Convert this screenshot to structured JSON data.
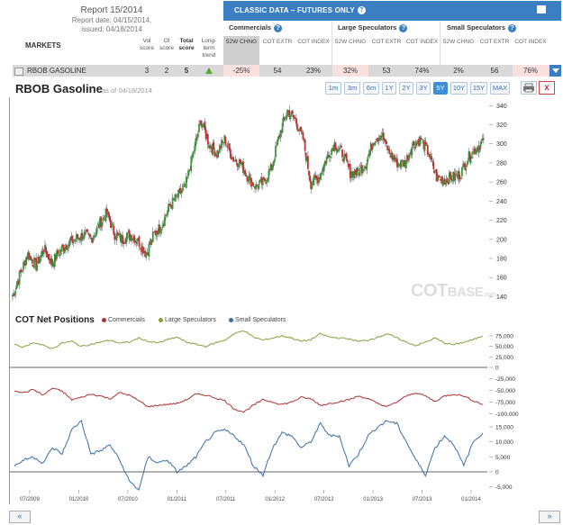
{
  "report": {
    "title": "Report 15/2014",
    "report_date": "Report date: 04/15/2014,",
    "issued": "issued: 04/18/2014"
  },
  "columns": {
    "markets": "MARKETS",
    "vol_score": "Vol score",
    "oi_score": "OI score",
    "total_score": "Total score",
    "trend": "Long-term trend"
  },
  "classic": {
    "title": "CLASSIC DATA – FUTURES ONLY",
    "help": "?",
    "groups": [
      "Commercials",
      "Large Speculators",
      "Small Speculators"
    ],
    "sub_headers": [
      "52W CHNG",
      "COT EXTR",
      "COT INDEX"
    ]
  },
  "row": {
    "market": "RBOB GASOLINE",
    "vol": "3",
    "oi": "2",
    "total": "5",
    "trend": "up",
    "values": [
      "-25%",
      "54",
      "23%",
      "32%",
      "53",
      "74%",
      "2%",
      "56",
      "76%"
    ]
  },
  "chart": {
    "title": "RBOB Gasoline",
    "date": "as of 04/18/2014",
    "zoom_buttons": [
      "1m",
      "3m",
      "6m",
      "1Y",
      "2Y",
      "3Y",
      "5Y",
      "10Y",
      "15Y",
      "MAX"
    ],
    "selected_zoom": "5Y",
    "close": "x",
    "watermark_main": "COT",
    "watermark_sub": "BASE",
    "watermark_tld": ".com"
  },
  "cot": {
    "title": "COT Net Positions",
    "legend": [
      "Commercials",
      "Large Speculators",
      "Small Speculators"
    ],
    "colors": {
      "commercials": "#b03030",
      "large": "#7fa33a",
      "small": "#3a6ea5"
    }
  },
  "nav": {
    "prev": "«",
    "next": "»"
  },
  "chart_data": [
    {
      "type": "candlestick",
      "title": "RBOB Gasoline",
      "ylim": [
        130,
        345
      ],
      "yticks": [
        140,
        160,
        180,
        200,
        220,
        240,
        260,
        280,
        300,
        320,
        340
      ],
      "xticks": [
        "07/2009",
        "01/2010",
        "07/2010",
        "01/2011",
        "07/2011",
        "01/2012",
        "07/2012",
        "01/2013",
        "07/2013",
        "01/2014"
      ],
      "close_path": [
        [
          "2009-04",
          140
        ],
        [
          "2009-05",
          165
        ],
        [
          "2009-06",
          185
        ],
        [
          "2009-07",
          172
        ],
        [
          "2009-08",
          190
        ],
        [
          "2009-09",
          175
        ],
        [
          "2009-10",
          188
        ],
        [
          "2009-11",
          195
        ],
        [
          "2009-12",
          200
        ],
        [
          "2010-01",
          205
        ],
        [
          "2010-02",
          200
        ],
        [
          "2010-03",
          215
        ],
        [
          "2010-04",
          228
        ],
        [
          "2010-05",
          205
        ],
        [
          "2010-06",
          200
        ],
        [
          "2010-07",
          205
        ],
        [
          "2010-08",
          198
        ],
        [
          "2010-09",
          185
        ],
        [
          "2010-10",
          205
        ],
        [
          "2010-11",
          215
        ],
        [
          "2010-12",
          235
        ],
        [
          "2011-01",
          245
        ],
        [
          "2011-02",
          255
        ],
        [
          "2011-03",
          290
        ],
        [
          "2011-04",
          325
        ],
        [
          "2011-05",
          300
        ],
        [
          "2011-06",
          290
        ],
        [
          "2011-07",
          305
        ],
        [
          "2011-08",
          285
        ],
        [
          "2011-09",
          280
        ],
        [
          "2011-10",
          265
        ],
        [
          "2011-11",
          255
        ],
        [
          "2011-12",
          260
        ],
        [
          "2012-01",
          275
        ],
        [
          "2012-02",
          310
        ],
        [
          "2012-03",
          335
        ],
        [
          "2012-04",
          325
        ],
        [
          "2012-05",
          305
        ],
        [
          "2012-06",
          258
        ],
        [
          "2012-07",
          265
        ],
        [
          "2012-08",
          285
        ],
        [
          "2012-09",
          300
        ],
        [
          "2012-10",
          290
        ],
        [
          "2012-11",
          270
        ],
        [
          "2012-12",
          270
        ],
        [
          "2013-01",
          280
        ],
        [
          "2013-02",
          305
        ],
        [
          "2013-03",
          310
        ],
        [
          "2013-04",
          290
        ],
        [
          "2013-05",
          280
        ],
        [
          "2013-06",
          280
        ],
        [
          "2013-07",
          300
        ],
        [
          "2013-08",
          305
        ],
        [
          "2013-09",
          290
        ],
        [
          "2013-10",
          265
        ],
        [
          "2013-11",
          262
        ],
        [
          "2013-12",
          265
        ],
        [
          "2014-01",
          268
        ],
        [
          "2014-02",
          285
        ],
        [
          "2014-03",
          295
        ],
        [
          "2014-04",
          305
        ]
      ]
    },
    {
      "type": "line",
      "title": "COT Net Positions",
      "yticks_large": [
        0,
        25000,
        50000,
        75000
      ],
      "yticks_comm": [
        -25000,
        -50000,
        -75000,
        -100000
      ],
      "yticks_small": [
        -5000,
        0,
        5000,
        10000,
        15000
      ],
      "series": [
        {
          "name": "Large Speculators",
          "values": [
            55000,
            48000,
            60000,
            52000,
            45000,
            58000,
            62000,
            50000,
            55000,
            60000,
            65000,
            58000,
            60000,
            70000,
            62000,
            58000,
            66000,
            72000,
            60000,
            55000,
            50000,
            58000,
            65000,
            80000,
            88000,
            72000,
            65000,
            70000,
            75000,
            70000,
            62000,
            66000,
            80000,
            72000,
            70000,
            68000,
            62000,
            65000,
            72000,
            80000,
            70000,
            60000,
            52000,
            60000,
            70000,
            58000,
            54000,
            60000,
            66000,
            75000
          ]
        },
        {
          "name": "Commercials",
          "values": [
            -50000,
            -55000,
            -48000,
            -60000,
            -45000,
            -52000,
            -70000,
            -65000,
            -58000,
            -62000,
            -68000,
            -55000,
            -60000,
            -72000,
            -85000,
            -82000,
            -80000,
            -78000,
            -70000,
            -58000,
            -60000,
            -66000,
            -72000,
            -90000,
            -96000,
            -82000,
            -70000,
            -75000,
            -80000,
            -75000,
            -65000,
            -68000,
            -82000,
            -78000,
            -74000,
            -70000,
            -62000,
            -68000,
            -78000,
            -85000,
            -75000,
            -62000,
            -55000,
            -62000,
            -74000,
            -62000,
            -58000,
            -62000,
            -72000,
            -80000
          ]
        },
        {
          "name": "Small Speculators",
          "values": [
            2000,
            4000,
            5000,
            3000,
            8000,
            6000,
            14000,
            17000,
            6000,
            7000,
            9000,
            4000,
            -3000,
            -6000,
            5000,
            3000,
            4000,
            0,
            2000,
            5000,
            10000,
            13000,
            14000,
            12000,
            9000,
            2000,
            -1000,
            8000,
            13000,
            12000,
            8000,
            10000,
            16000,
            12000,
            12000,
            2000,
            6000,
            12000,
            15000,
            17000,
            16000,
            10000,
            4000,
            -1000,
            8000,
            12000,
            9000,
            2000,
            10000,
            13000
          ]
        }
      ]
    }
  ]
}
